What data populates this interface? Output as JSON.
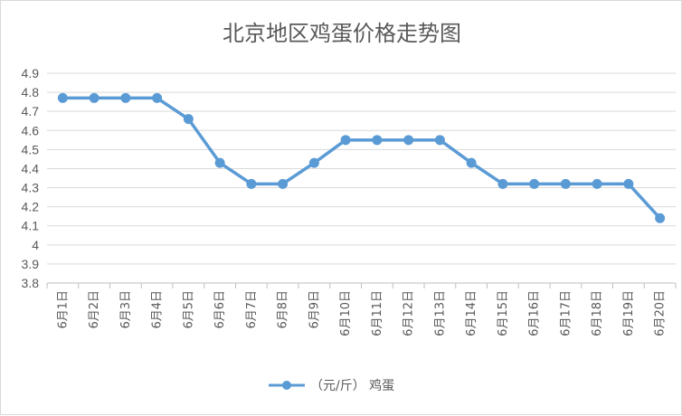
{
  "chart_data": {
    "type": "line",
    "title": "北京地区鸡蛋价格走势图",
    "categories": [
      "6月1日",
      "6月2日",
      "6月3日",
      "6月4日",
      "6月5日",
      "6月6日",
      "6月7日",
      "6月8日",
      "6月9日",
      "6月10日",
      "6月11日",
      "6月12日",
      "6月13日",
      "6月14日",
      "6月15日",
      "6月16日",
      "6月17日",
      "6月18日",
      "6月19日",
      "6月20日"
    ],
    "series": [
      {
        "name": "（元/斤） 鸡蛋",
        "values": [
          4.77,
          4.77,
          4.77,
          4.77,
          4.66,
          4.43,
          4.32,
          4.32,
          4.43,
          4.55,
          4.55,
          4.55,
          4.55,
          4.43,
          4.32,
          4.32,
          4.32,
          4.32,
          4.32,
          4.14
        ]
      }
    ],
    "yticks": [
      "3.8",
      "3.9",
      "4",
      "4.1",
      "4.2",
      "4.3",
      "4.4",
      "4.5",
      "4.6",
      "4.7",
      "4.8",
      "4.9"
    ],
    "ylim": [
      3.8,
      4.9
    ],
    "grid": true,
    "legend": "bottom",
    "color": "#5b9bd5"
  }
}
